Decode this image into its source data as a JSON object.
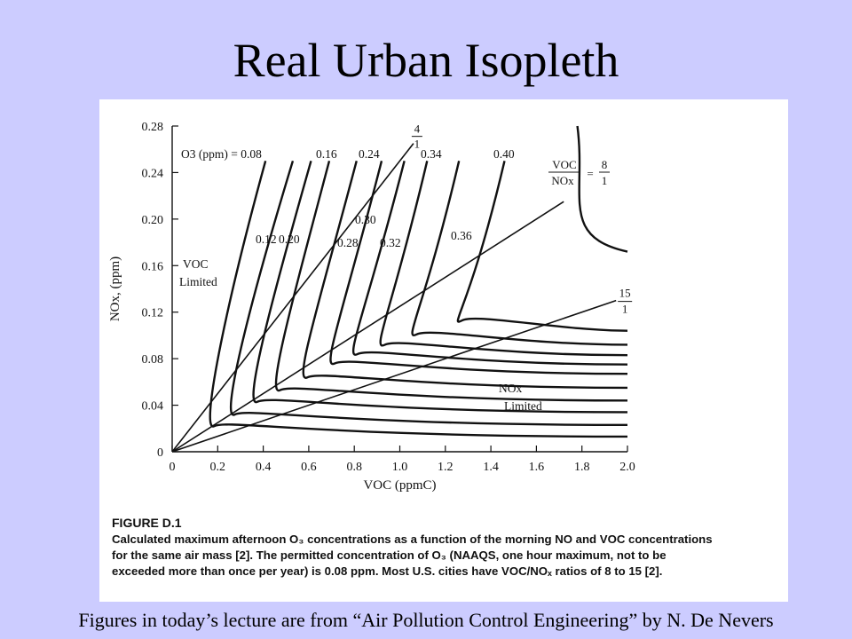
{
  "slide": {
    "title": "Real Urban Isopleth",
    "footer": "Figures in today’s lecture are from “Air Pollution Control Engineering” by N. De Nevers"
  },
  "figure": {
    "label": "FIGURE D.1",
    "caption_lines": [
      "Calculated maximum afternoon O₃ concentrations as a function of the morning NO and VOC concentrations",
      "for the same air mass [2]. The permitted concentration of O₃ (NAAQS, one hour maximum, not to be",
      "exceeded more than once per year) is 0.08 ppm. Most U.S. cities have VOC/NOₓ ratios of 8 to 15 [2]."
    ]
  },
  "chart_data": {
    "type": "line",
    "xlabel": "VOC (ppmC)",
    "ylabel": "NOx, (ppm)",
    "xlim": [
      0,
      2.0
    ],
    "ylim": [
      0,
      0.28
    ],
    "x_ticks": [
      "0",
      "0.2",
      "0.4",
      "0.6",
      "0.8",
      "1.0",
      "1.2",
      "1.4",
      "1.6",
      "1.8",
      "2.0"
    ],
    "y_ticks": [
      "0",
      "0.04",
      "0.08",
      "0.12",
      "0.16",
      "0.20",
      "0.24",
      "0.28"
    ],
    "grid": false,
    "isopleths": [
      {
        "name": "0.08",
        "label": "O3 (ppm) = 0.08",
        "corner_x": 0.13,
        "corner_y": 0.025,
        "top_x": 0.41
      },
      {
        "name": "0.12",
        "label": "0.12",
        "corner_x": 0.22,
        "corner_y": 0.035,
        "top_x": 0.53
      },
      {
        "name": "0.16",
        "label": "0.16",
        "corner_x": 0.32,
        "corner_y": 0.046,
        "top_x": 0.61
      },
      {
        "name": "0.20",
        "label": "0.20",
        "corner_x": 0.42,
        "corner_y": 0.056,
        "top_x": 0.69
      },
      {
        "name": "0.24",
        "label": "0.24",
        "corner_x": 0.54,
        "corner_y": 0.067,
        "top_x": 0.81
      },
      {
        "name": "0.28",
        "label": "0.28",
        "corner_x": 0.66,
        "corner_y": 0.079,
        "top_x": 0.92
      },
      {
        "name": "0.30",
        "label": "0.30",
        "corner_x": 0.76,
        "corner_y": 0.087,
        "top_x": 1.02
      },
      {
        "name": "0.32",
        "label": "0.32",
        "corner_x": 0.88,
        "corner_y": 0.095,
        "top_x": 1.12
      },
      {
        "name": "0.34",
        "label": "0.34",
        "corner_x": 1.02,
        "corner_y": 0.104,
        "top_x": 1.26
      },
      {
        "name": "0.36",
        "label": "0.36",
        "corner_x": 1.22,
        "corner_y": 0.116,
        "top_x": 1.46
      },
      {
        "name": "0.40",
        "label": "0.40",
        "corner_x": 1.62,
        "corner_y": 0.172,
        "top_x": 1.82
      }
    ],
    "ratio_lines": [
      {
        "name": "VOC/NOx = 4/1",
        "numerator": "4",
        "denominator": "1",
        "end_x": 1.06,
        "end_y": 0.265
      },
      {
        "name": "VOC/NOx = 8/1",
        "numerator": "8",
        "denominator": "1",
        "end_x": 1.72,
        "end_y": 0.215
      },
      {
        "name": "VOC/NOx = 15/1",
        "numerator": "15",
        "denominator": "1",
        "end_x": 1.95,
        "end_y": 0.13
      }
    ],
    "annotations": {
      "voc_limited": [
        "VOC",
        "Limited"
      ],
      "nox_limited": [
        "NOx",
        "Limited"
      ],
      "ratio_label": [
        "VOC",
        "NOx"
      ],
      "ratio_8": [
        "8",
        "1"
      ]
    }
  }
}
